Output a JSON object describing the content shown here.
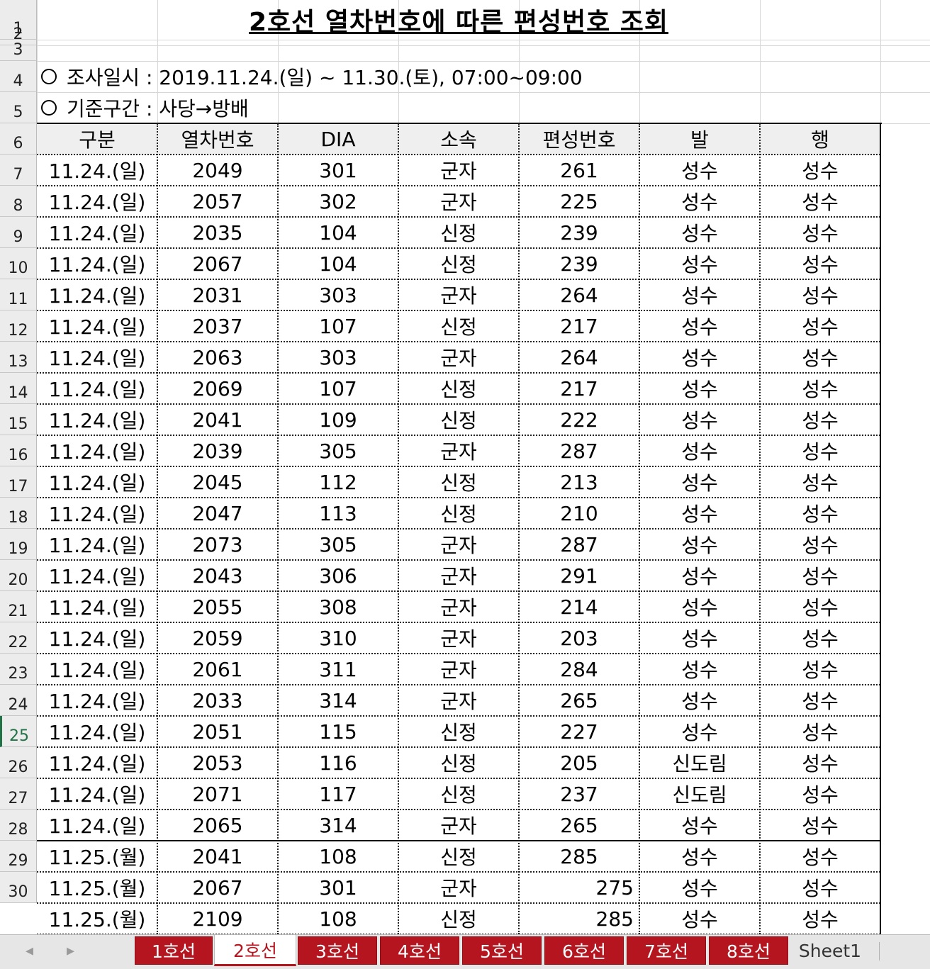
{
  "title": "2호선 열차번호에 따른 편성번호 조회",
  "info": {
    "line1": "조사일시 : 2019.11.24.(일) ~ 11.30.(토), 07:00~09:00",
    "line2": "기준구간 : 사당→방배"
  },
  "row_numbers": [
    "1",
    "2",
    "3",
    "4",
    "5",
    "6",
    "7",
    "8",
    "9",
    "10",
    "11",
    "12",
    "13",
    "14",
    "15",
    "16",
    "17",
    "18",
    "19",
    "20",
    "21",
    "22",
    "23",
    "24",
    "25",
    "26",
    "27",
    "28",
    "29",
    "30"
  ],
  "table": {
    "headers": [
      "구분",
      "열차번호",
      "DIA",
      "소속",
      "편성번호",
      "발",
      "행"
    ],
    "rows": [
      [
        "11.24.(일)",
        "2049",
        "301",
        "군자",
        "261",
        "성수",
        "성수"
      ],
      [
        "11.24.(일)",
        "2057",
        "302",
        "군자",
        "225",
        "성수",
        "성수"
      ],
      [
        "11.24.(일)",
        "2035",
        "104",
        "신정",
        "239",
        "성수",
        "성수"
      ],
      [
        "11.24.(일)",
        "2067",
        "104",
        "신정",
        "239",
        "성수",
        "성수"
      ],
      [
        "11.24.(일)",
        "2031",
        "303",
        "군자",
        "264",
        "성수",
        "성수"
      ],
      [
        "11.24.(일)",
        "2037",
        "107",
        "신정",
        "217",
        "성수",
        "성수"
      ],
      [
        "11.24.(일)",
        "2063",
        "303",
        "군자",
        "264",
        "성수",
        "성수"
      ],
      [
        "11.24.(일)",
        "2069",
        "107",
        "신정",
        "217",
        "성수",
        "성수"
      ],
      [
        "11.24.(일)",
        "2041",
        "109",
        "신정",
        "222",
        "성수",
        "성수"
      ],
      [
        "11.24.(일)",
        "2039",
        "305",
        "군자",
        "287",
        "성수",
        "성수"
      ],
      [
        "11.24.(일)",
        "2045",
        "112",
        "신정",
        "213",
        "성수",
        "성수"
      ],
      [
        "11.24.(일)",
        "2047",
        "113",
        "신정",
        "210",
        "성수",
        "성수"
      ],
      [
        "11.24.(일)",
        "2073",
        "305",
        "군자",
        "287",
        "성수",
        "성수"
      ],
      [
        "11.24.(일)",
        "2043",
        "306",
        "군자",
        "291",
        "성수",
        "성수"
      ],
      [
        "11.24.(일)",
        "2055",
        "308",
        "군자",
        "214",
        "성수",
        "성수"
      ],
      [
        "11.24.(일)",
        "2059",
        "310",
        "군자",
        "203",
        "성수",
        "성수"
      ],
      [
        "11.24.(일)",
        "2061",
        "311",
        "군자",
        "284",
        "성수",
        "성수"
      ],
      [
        "11.24.(일)",
        "2033",
        "314",
        "군자",
        "265",
        "성수",
        "성수"
      ],
      [
        "11.24.(일)",
        "2051",
        "115",
        "신정",
        "227",
        "성수",
        "성수"
      ],
      [
        "11.24.(일)",
        "2053",
        "116",
        "신정",
        "205",
        "신도림",
        "성수"
      ],
      [
        "11.24.(일)",
        "2071",
        "117",
        "신정",
        "237",
        "신도림",
        "성수"
      ],
      [
        "11.24.(일)",
        "2065",
        "314",
        "군자",
        "265",
        "성수",
        "성수"
      ],
      [
        "11.25.(월)",
        "2041",
        "108",
        "신정",
        "285",
        "성수",
        "성수"
      ],
      [
        "11.25.(월)",
        "2067",
        "301",
        "군자",
        "275",
        "성수",
        "성수"
      ],
      [
        "11.25.(월)",
        "2109",
        "108",
        "신정",
        "285",
        "성수",
        "성수"
      ]
    ],
    "right_aligned_cells": [
      [
        23,
        4
      ],
      [
        24,
        4
      ]
    ]
  },
  "selected_row": "25",
  "tabs": [
    {
      "label": "1호선",
      "active": false
    },
    {
      "label": "2호선",
      "active": true
    },
    {
      "label": "3호선",
      "active": false
    },
    {
      "label": "4호선",
      "active": false
    },
    {
      "label": "5호선",
      "active": false
    },
    {
      "label": "6호선",
      "active": false
    },
    {
      "label": "7호선",
      "active": false
    },
    {
      "label": "8호선",
      "active": false
    },
    {
      "label": "Sheet1",
      "active": false,
      "plain": true
    }
  ],
  "nav": {
    "prev": "◂",
    "next": "▸"
  },
  "colors": {
    "tab_red": "#b5151f",
    "select_green": "#217346"
  }
}
